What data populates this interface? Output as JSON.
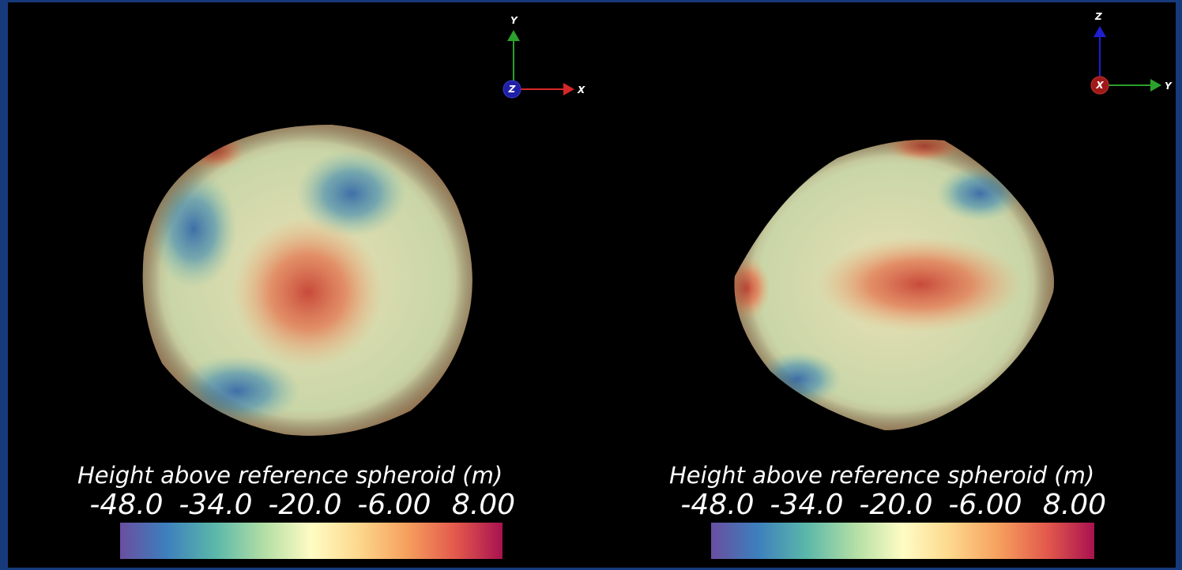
{
  "panels": [
    {
      "triad": {
        "up": "Y",
        "right": "X",
        "center": "Z"
      },
      "colorbar": {
        "title": "Height above reference spheroid (m)",
        "ticks": [
          "-48.0",
          "-34.0",
          "-20.0",
          "-6.00",
          "8.00"
        ]
      }
    },
    {
      "triad": {
        "up": "Z",
        "right": "Y",
        "center": "X"
      },
      "colorbar": {
        "title": "Height above reference spheroid (m)",
        "ticks": [
          "-48.0",
          "-34.0",
          "-20.0",
          "-6.00",
          "8.00"
        ]
      }
    }
  ]
}
